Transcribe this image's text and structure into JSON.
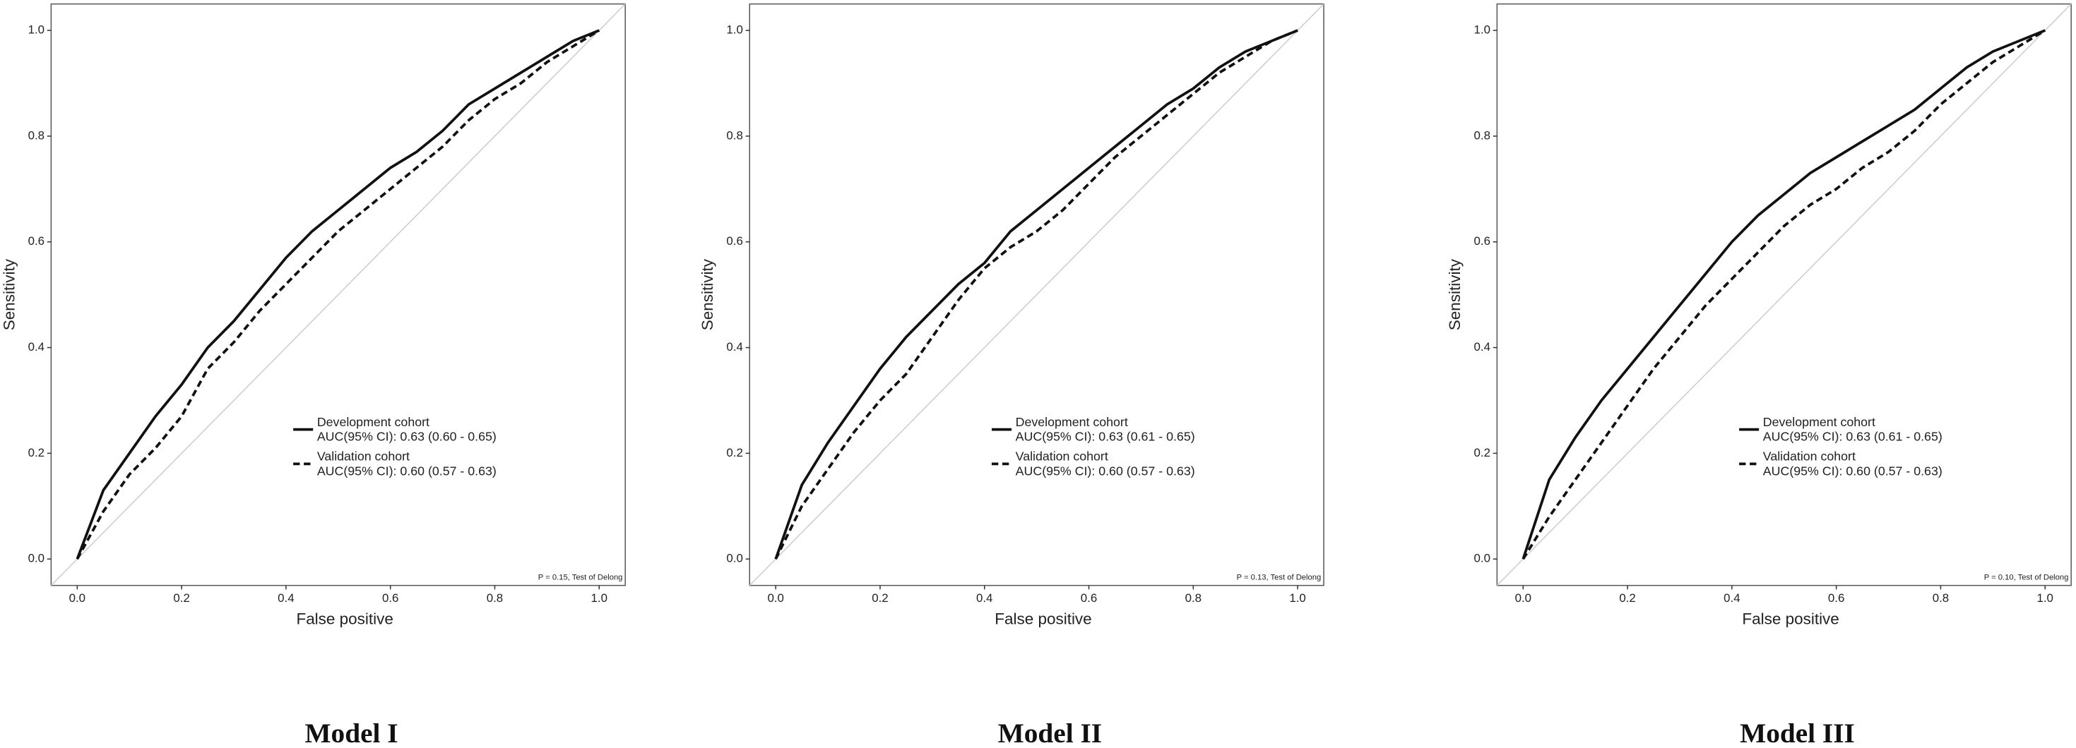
{
  "chart_data": [
    {
      "type": "line",
      "title": "Model I",
      "x_label": "False positive",
      "y_label": "Sensitivity",
      "x": [
        0,
        0.05,
        0.1,
        0.15,
        0.2,
        0.25,
        0.3,
        0.35,
        0.4,
        0.45,
        0.5,
        0.55,
        0.6,
        0.65,
        0.7,
        0.75,
        0.8,
        0.85,
        0.9,
        0.95,
        1
      ],
      "series": [
        {
          "name": "Development cohort",
          "auc_label": "AUC(95% CI): 0.63 (0.60 - 0.65)",
          "color": "#111111",
          "dash": "solid",
          "values": [
            0,
            0.13,
            0.2,
            0.27,
            0.33,
            0.4,
            0.45,
            0.51,
            0.57,
            0.62,
            0.66,
            0.7,
            0.74,
            0.77,
            0.81,
            0.86,
            0.89,
            0.92,
            0.95,
            0.98,
            1
          ]
        },
        {
          "name": "Validation cohort",
          "auc_label": "AUC(95% CI): 0.60 (0.57 - 0.63)",
          "color": "#111111",
          "dash": "dashed",
          "values": [
            0,
            0.09,
            0.16,
            0.21,
            0.27,
            0.36,
            0.41,
            0.47,
            0.52,
            0.57,
            0.62,
            0.66,
            0.7,
            0.74,
            0.78,
            0.83,
            0.87,
            0.9,
            0.94,
            0.97,
            1
          ]
        }
      ],
      "xlim": [
        -0.05,
        1.05
      ],
      "ylim": [
        -0.05,
        1.05
      ],
      "xticks": [
        {
          "value": 0,
          "label": "0.0"
        },
        0.2,
        0.4,
        0.6,
        0.8,
        {
          "value": 1,
          "label": "1.0"
        }
      ],
      "yticks": [
        {
          "value": 0,
          "label": "0.0"
        },
        0.2,
        0.4,
        0.6,
        0.8,
        {
          "value": 1,
          "label": "1.0"
        }
      ],
      "annotation": "P = 0.15, Test of Delong"
    },
    {
      "type": "line",
      "title": "Model II",
      "x_label": "False positive",
      "y_label": "Sensitivity",
      "x": [
        0,
        0.05,
        0.1,
        0.15,
        0.2,
        0.25,
        0.3,
        0.35,
        0.4,
        0.45,
        0.5,
        0.55,
        0.6,
        0.65,
        0.7,
        0.75,
        0.8,
        0.85,
        0.9,
        0.95,
        1
      ],
      "series": [
        {
          "name": "Development cohort",
          "auc_label": "AUC(95% CI): 0.63 (0.61 - 0.65)",
          "color": "#111111",
          "dash": "solid",
          "values": [
            0,
            0.14,
            0.22,
            0.29,
            0.36,
            0.42,
            0.47,
            0.52,
            0.56,
            0.62,
            0.66,
            0.7,
            0.74,
            0.78,
            0.82,
            0.86,
            0.89,
            0.93,
            0.96,
            0.98,
            1
          ]
        },
        {
          "name": "Validation cohort",
          "auc_label": "AUC(95% CI): 0.60 (0.57 - 0.63)",
          "color": "#111111",
          "dash": "dashed",
          "values": [
            0,
            0.1,
            0.17,
            0.24,
            0.3,
            0.35,
            0.42,
            0.49,
            0.55,
            0.59,
            0.62,
            0.66,
            0.71,
            0.76,
            0.8,
            0.84,
            0.88,
            0.92,
            0.95,
            0.98,
            1
          ]
        }
      ],
      "xlim": [
        -0.05,
        1.05
      ],
      "ylim": [
        -0.05,
        1.05
      ],
      "xticks": [
        {
          "value": 0,
          "label": "0.0"
        },
        0.2,
        0.4,
        0.6,
        0.8,
        {
          "value": 1,
          "label": "1.0"
        }
      ],
      "yticks": [
        {
          "value": 0,
          "label": "0.0"
        },
        0.2,
        0.4,
        0.6,
        0.8,
        {
          "value": 1,
          "label": "1.0"
        }
      ],
      "annotation": "P = 0.13, Test of Delong"
    },
    {
      "type": "line",
      "title": "Model III",
      "x_label": "False positive",
      "y_label": "Sensitivity",
      "x": [
        0,
        0.05,
        0.1,
        0.15,
        0.2,
        0.25,
        0.3,
        0.35,
        0.4,
        0.45,
        0.5,
        0.55,
        0.6,
        0.65,
        0.7,
        0.75,
        0.8,
        0.85,
        0.9,
        0.95,
        1
      ],
      "series": [
        {
          "name": "Development cohort",
          "auc_label": "AUC(95% CI): 0.63 (0.61 - 0.65)",
          "color": "#111111",
          "dash": "solid",
          "values": [
            0,
            0.15,
            0.23,
            0.3,
            0.36,
            0.42,
            0.48,
            0.54,
            0.6,
            0.65,
            0.69,
            0.73,
            0.76,
            0.79,
            0.82,
            0.85,
            0.89,
            0.93,
            0.96,
            0.98,
            1
          ]
        },
        {
          "name": "Validation cohort",
          "auc_label": "AUC(95% CI): 0.60 (0.57 - 0.63)",
          "color": "#111111",
          "dash": "dashed",
          "values": [
            0,
            0.08,
            0.15,
            0.22,
            0.29,
            0.36,
            0.42,
            0.48,
            0.53,
            0.58,
            0.63,
            0.67,
            0.7,
            0.74,
            0.77,
            0.81,
            0.86,
            0.9,
            0.94,
            0.97,
            1
          ]
        }
      ],
      "xlim": [
        -0.05,
        1.05
      ],
      "ylim": [
        -0.05,
        1.05
      ],
      "xticks": [
        {
          "value": 0,
          "label": "0.0"
        },
        0.2,
        0.4,
        0.6,
        0.8,
        {
          "value": 1,
          "label": "1.0"
        }
      ],
      "yticks": [
        {
          "value": 0,
          "label": "0.0"
        },
        0.2,
        0.4,
        0.6,
        0.8,
        {
          "value": 1,
          "label": "1.0"
        }
      ],
      "annotation": "P = 0.10, Test of Delong"
    }
  ]
}
